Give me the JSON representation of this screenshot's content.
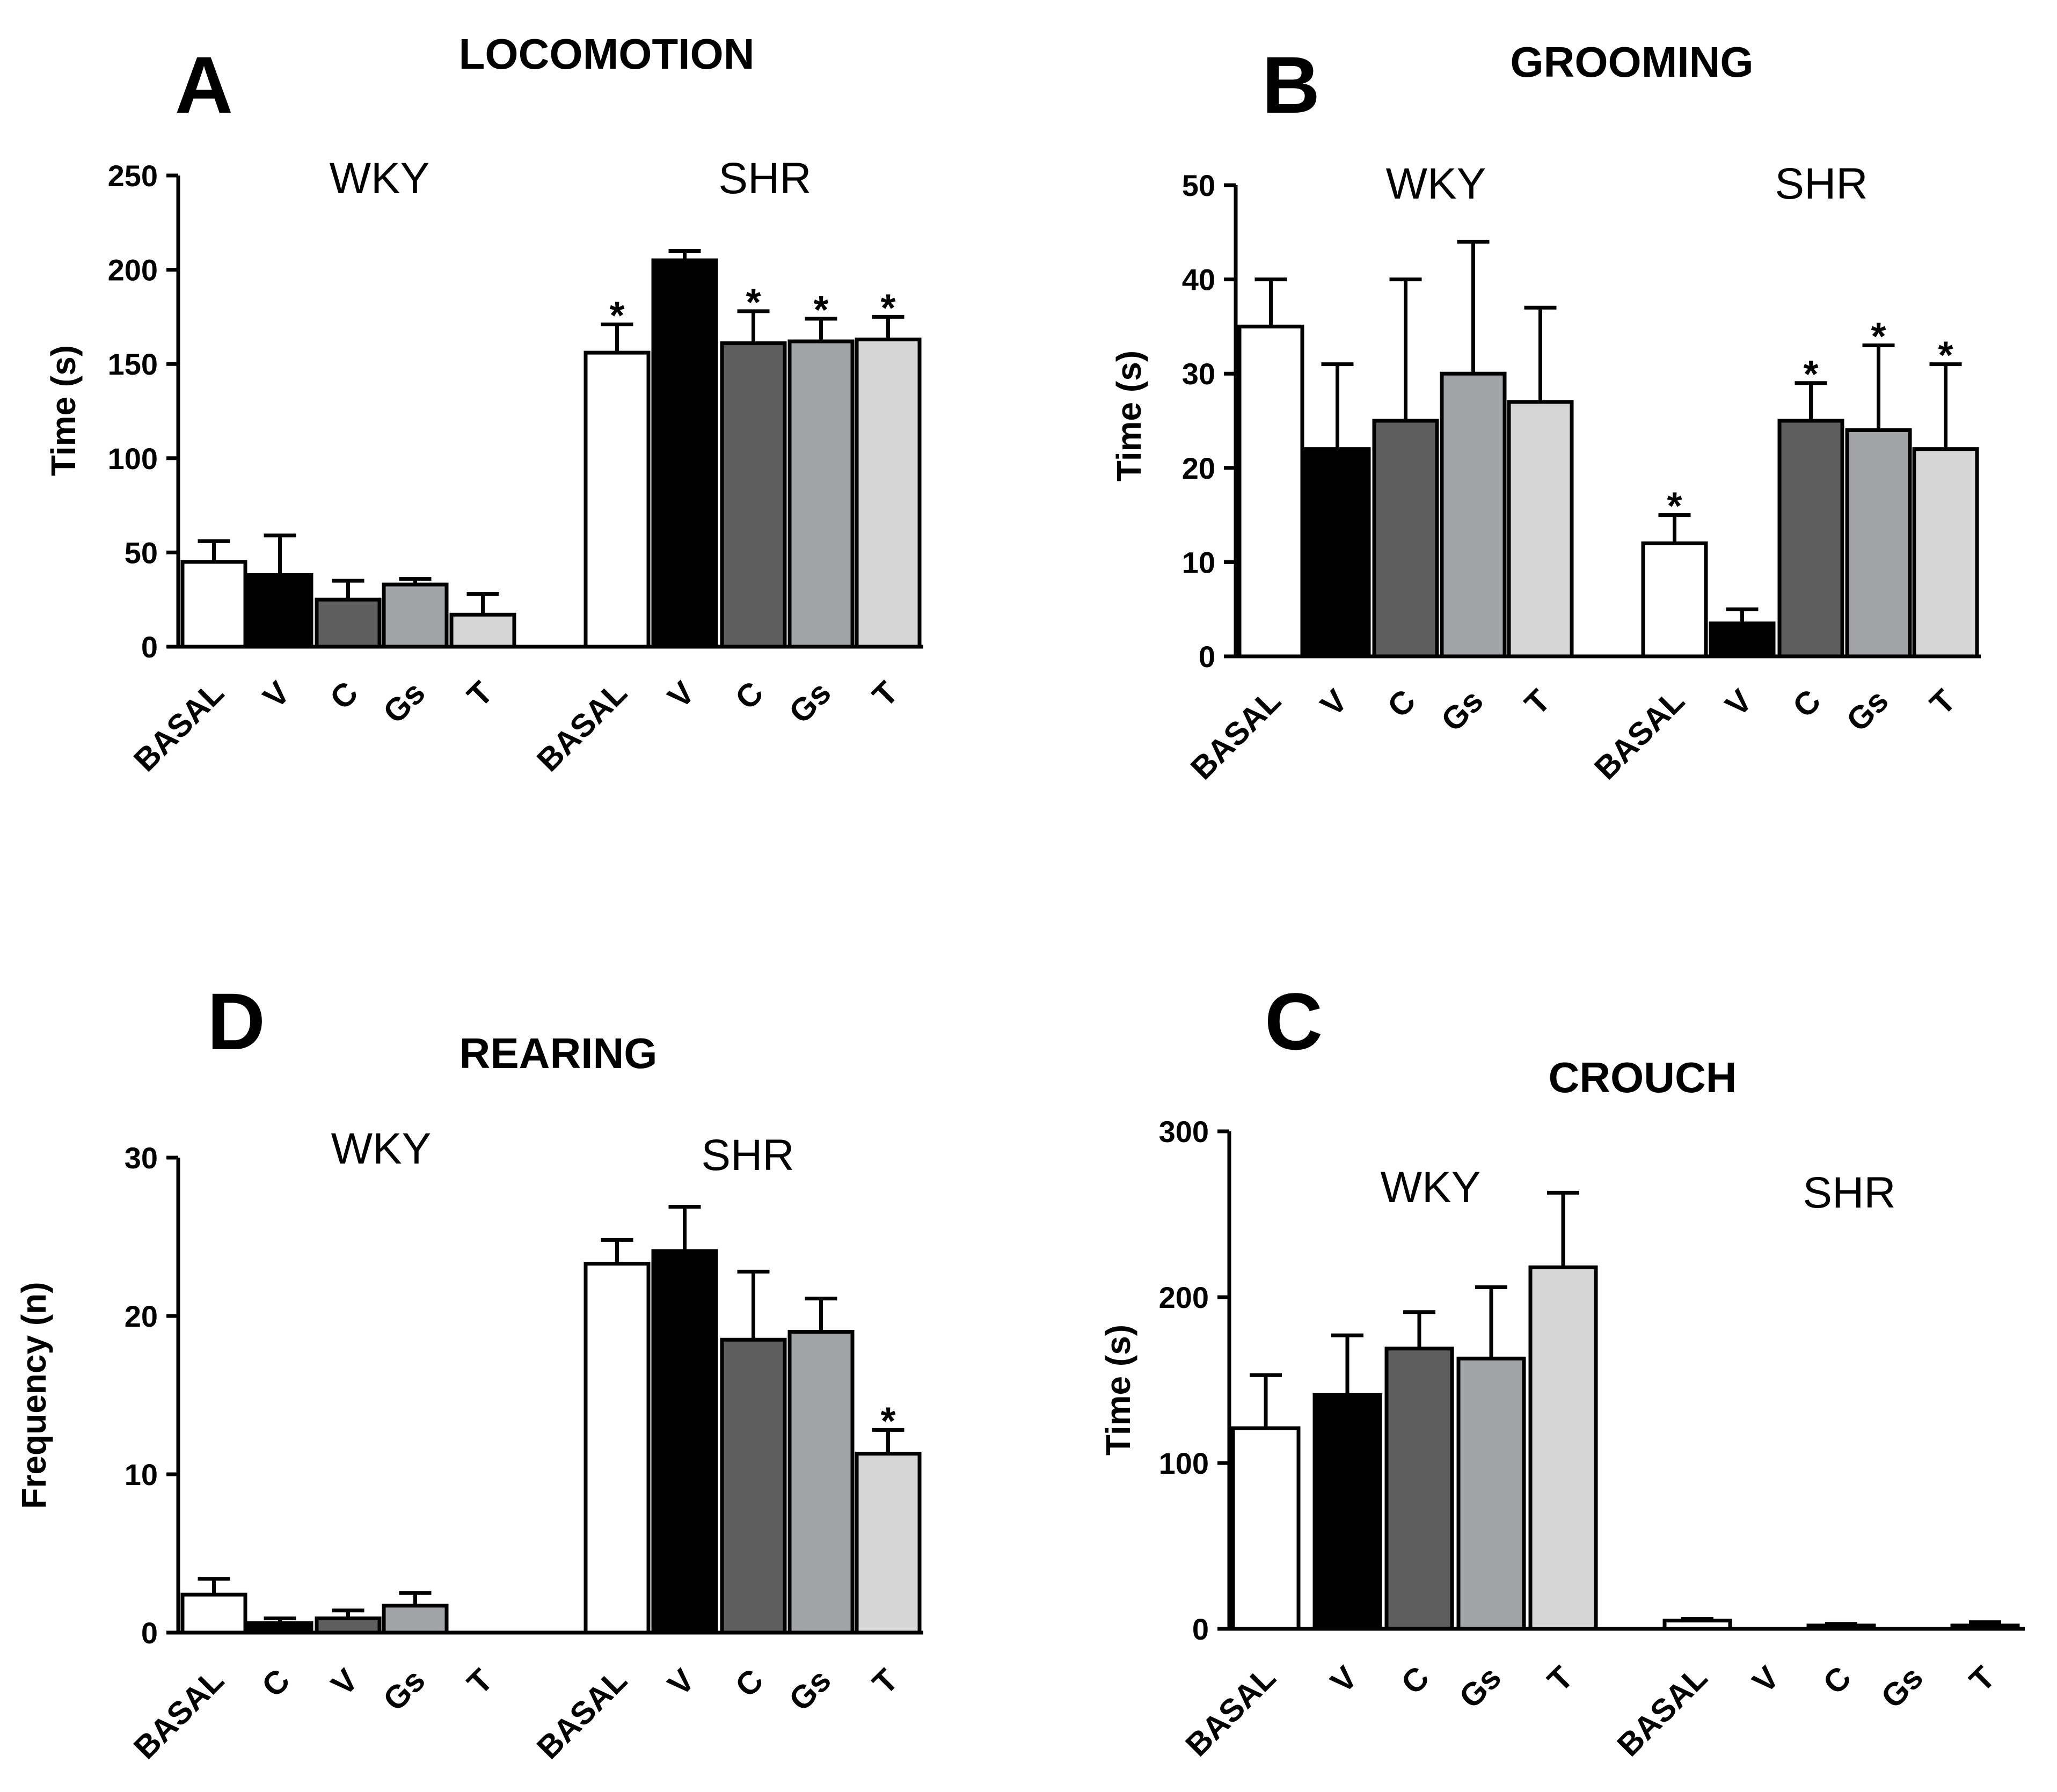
{
  "chart_data": [
    {
      "type": "bar",
      "panel": "A",
      "title": "LOCOMOTION",
      "ylabel": "Time (s)",
      "ylim": [
        0,
        250
      ],
      "yticks": [
        0,
        50,
        100,
        150,
        200,
        250
      ],
      "groups": [
        {
          "name": "WKY",
          "bars": [
            {
              "label": "BASAL",
              "value": 45,
              "err": 11,
              "star": false
            },
            {
              "label": "V",
              "value": 38,
              "err": 21,
              "star": false
            },
            {
              "label": "C",
              "value": 25,
              "err": 10,
              "star": false
            },
            {
              "label": "Gs",
              "value": 33,
              "err": 3,
              "star": false
            },
            {
              "label": "T",
              "value": 17,
              "err": 11,
              "star": false
            }
          ]
        },
        {
          "name": "SHR",
          "bars": [
            {
              "label": "BASAL",
              "value": 156,
              "err": 15,
              "star": true
            },
            {
              "label": "V",
              "value": 205,
              "err": 5,
              "star": false
            },
            {
              "label": "C",
              "value": 161,
              "err": 17,
              "star": true
            },
            {
              "label": "Gs",
              "value": 162,
              "err": 12,
              "star": true
            },
            {
              "label": "T",
              "value": 163,
              "err": 12,
              "star": true
            }
          ]
        }
      ]
    },
    {
      "type": "bar",
      "panel": "B",
      "title": "GROOMING",
      "ylabel": "Time (s)",
      "ylim": [
        0,
        50
      ],
      "yticks": [
        0,
        10,
        20,
        30,
        40,
        50
      ],
      "groups": [
        {
          "name": "WKY",
          "bars": [
            {
              "label": "BASAL",
              "value": 35,
              "err": 5,
              "star": false
            },
            {
              "label": "V",
              "value": 22,
              "err": 9,
              "star": false
            },
            {
              "label": "C",
              "value": 25,
              "err": 15,
              "star": false
            },
            {
              "label": "Gs",
              "value": 30,
              "err": 14,
              "star": false
            },
            {
              "label": "T",
              "value": 27,
              "err": 10,
              "star": false
            }
          ]
        },
        {
          "name": "SHR",
          "bars": [
            {
              "label": "BASAL",
              "value": 12,
              "err": 3,
              "star": true
            },
            {
              "label": "V",
              "value": 3.5,
              "err": 1.5,
              "star": false
            },
            {
              "label": "C",
              "value": 25,
              "err": 4,
              "star": true
            },
            {
              "label": "Gs",
              "value": 24,
              "err": 9,
              "star": true
            },
            {
              "label": "T",
              "value": 22,
              "err": 9,
              "star": true
            }
          ]
        }
      ]
    },
    {
      "type": "bar",
      "panel": "D",
      "title": "REARING",
      "ylabel": "Frequency (n)",
      "ylim": [
        0,
        30
      ],
      "yticks": [
        0,
        10,
        20,
        30
      ],
      "groups": [
        {
          "name": "WKY",
          "bars": [
            {
              "label": "BASAL",
              "value": 2.4,
              "err": 1.0,
              "star": false
            },
            {
              "label": "C",
              "value": 0.6,
              "err": 0.3,
              "star": false
            },
            {
              "label": "V",
              "value": 0.9,
              "err": 0.5,
              "star": false
            },
            {
              "label": "Gs",
              "value": 1.7,
              "err": 0.8,
              "star": false
            },
            {
              "label": "T",
              "value": 0,
              "err": 0,
              "star": false
            }
          ]
        },
        {
          "name": "SHR",
          "bars": [
            {
              "label": "BASAL",
              "value": 23.3,
              "err": 1.5,
              "star": false
            },
            {
              "label": "V",
              "value": 24.1,
              "err": 2.8,
              "star": false
            },
            {
              "label": "C",
              "value": 18.5,
              "err": 4.3,
              "star": false
            },
            {
              "label": "Gs",
              "value": 19.0,
              "err": 2.1,
              "star": false
            },
            {
              "label": "T",
              "value": 11.3,
              "err": 1.5,
              "star": true
            }
          ]
        }
      ]
    },
    {
      "type": "bar",
      "panel": "C",
      "title": "CROUCH",
      "ylabel": "Time (s)",
      "ylim": [
        0,
        300
      ],
      "yticks": [
        0,
        100,
        200,
        300
      ],
      "groups": [
        {
          "name": "WKY",
          "bars": [
            {
              "label": "BASAL",
              "value": 121,
              "err": 32,
              "star": false
            },
            {
              "label": "V",
              "value": 141,
              "err": 36,
              "star": false
            },
            {
              "label": "C",
              "value": 169,
              "err": 22,
              "star": false
            },
            {
              "label": "Gs",
              "value": 163,
              "err": 43,
              "star": false
            },
            {
              "label": "T",
              "value": 218,
              "err": 45,
              "star": false
            }
          ]
        },
        {
          "name": "SHR",
          "bars": [
            {
              "label": "BASAL",
              "value": 5,
              "err": 1,
              "star": false
            },
            {
              "label": "V",
              "value": 0,
              "err": 0,
              "star": false
            },
            {
              "label": "C",
              "value": 2,
              "err": 1,
              "star": false
            },
            {
              "label": "Gs",
              "value": 0,
              "err": 0,
              "star": false
            },
            {
              "label": "T",
              "value": 2,
              "err": 2,
              "star": false
            }
          ]
        }
      ]
    }
  ],
  "bar_colors": [
    "#ffffff",
    "#000000",
    "#5e5e5e",
    "#a2a3a6",
    "#d6d6d6"
  ],
  "significance_marker": "*"
}
